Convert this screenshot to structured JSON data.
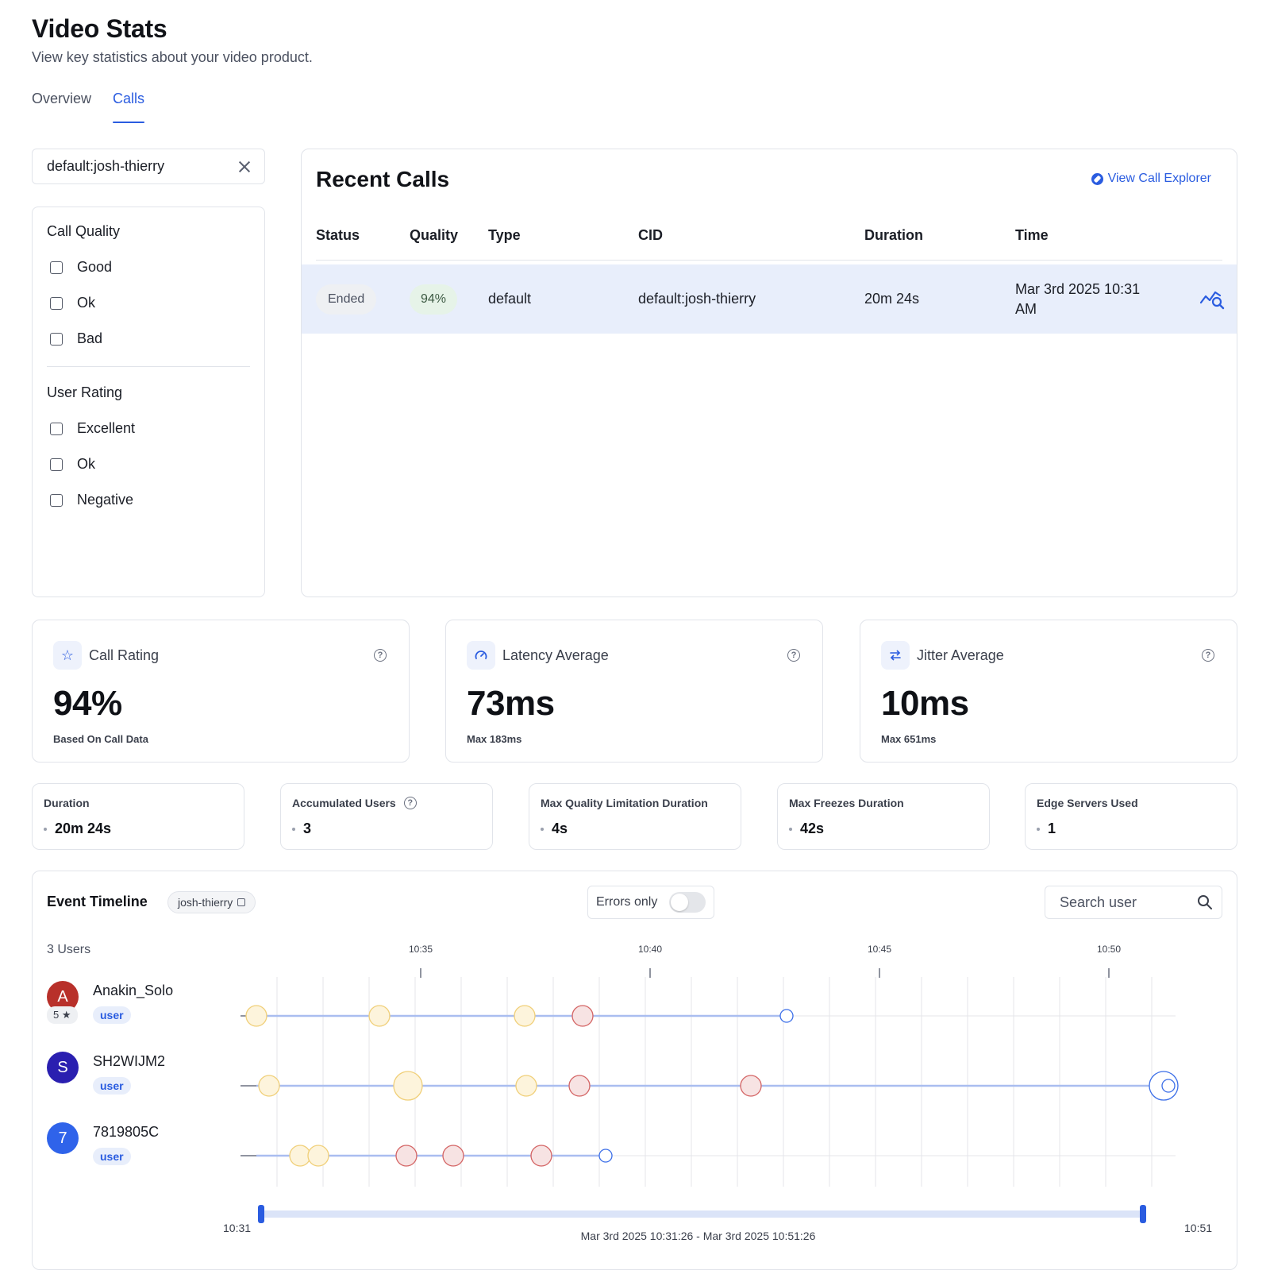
{
  "header": {
    "title": "Video Stats",
    "subtitle": "View key statistics about your video product."
  },
  "tabs": [
    {
      "label": "Overview",
      "active": false
    },
    {
      "label": "Calls",
      "active": true
    }
  ],
  "search": {
    "value": "default:josh-thierry"
  },
  "filters": {
    "call_quality": {
      "title": "Call Quality",
      "options": [
        "Good",
        "Ok",
        "Bad"
      ]
    },
    "user_rating": {
      "title": "User Rating",
      "options": [
        "Excellent",
        "Ok",
        "Negative"
      ]
    }
  },
  "recent_calls": {
    "title": "Recent Calls",
    "view_explorer": "View Call Explorer",
    "columns": [
      "Status",
      "Quality",
      "Type",
      "CID",
      "Duration",
      "Time"
    ],
    "rows": [
      {
        "status": "Ended",
        "quality": "94%",
        "type": "default",
        "cid": "default:josh-thierry",
        "duration": "20m 24s",
        "time_line1": "Mar 3rd 2025 10:31",
        "time_line2": "AM"
      }
    ]
  },
  "stats": [
    {
      "icon": "star-icon",
      "label": "Call Rating",
      "value": "94%",
      "sub": "Based On Call Data"
    },
    {
      "icon": "gauge-icon",
      "label": "Latency Average",
      "value": "73ms",
      "sub": "Max 183ms"
    },
    {
      "icon": "arrows-icon",
      "label": "Jitter Average",
      "value": "10ms",
      "sub": "Max 651ms"
    }
  ],
  "mini_stats": [
    {
      "label": "Duration",
      "value": "20m 24s",
      "help": false
    },
    {
      "label": "Accumulated Users",
      "value": "3",
      "help": true
    },
    {
      "label": "Max Quality Limitation Duration",
      "value": "4s",
      "help": false
    },
    {
      "label": "Max Freezes Duration",
      "value": "42s",
      "help": false
    },
    {
      "label": "Edge Servers Used",
      "value": "1",
      "help": false
    }
  ],
  "timeline": {
    "title": "Event Timeline",
    "chip": "josh-thierry",
    "errors_only": "Errors only",
    "errors_only_on": false,
    "search_placeholder": "Search user",
    "users_count": "3 Users",
    "ticks": [
      "10:35",
      "10:40",
      "10:45",
      "10:50"
    ],
    "range_start": "10:31",
    "range_end": "10:51",
    "range_caption": "Mar 3rd 2025 10:31:26 - Mar 3rd 2025 10:51:26",
    "colors": {
      "line": "#a9bdf0",
      "warning_fill": "#fdf4dc",
      "warning_stroke": "#f0cf78",
      "error_fill": "#f7e3e3",
      "error_stroke": "#d46464",
      "end_fill": "#ffffff",
      "end_stroke": "#3b6ee8",
      "accent": "#2a5ce0"
    },
    "users": [
      {
        "initial": "A",
        "name": "Anakin_Solo",
        "role": "user",
        "rating": "5 ★",
        "avatar_color": "#b8302a",
        "events": [
          {
            "kind": "warning"
          },
          {
            "kind": "warning"
          },
          {
            "kind": "warning"
          },
          {
            "kind": "error"
          },
          {
            "kind": "end"
          }
        ]
      },
      {
        "initial": "S",
        "name": "SH2WIJM2",
        "role": "user",
        "rating": "",
        "avatar_color": "#2a1fb0",
        "events": [
          {
            "kind": "warning"
          },
          {
            "kind": "warning"
          },
          {
            "kind": "warning"
          },
          {
            "kind": "error"
          },
          {
            "kind": "error"
          },
          {
            "kind": "end"
          }
        ]
      },
      {
        "initial": "7",
        "name": "7819805C",
        "role": "user",
        "rating": "",
        "avatar_color": "#2f63ea",
        "events": [
          {
            "kind": "warning"
          },
          {
            "kind": "warning"
          },
          {
            "kind": "error"
          },
          {
            "kind": "error"
          },
          {
            "kind": "error"
          },
          {
            "kind": "end"
          }
        ]
      }
    ]
  }
}
